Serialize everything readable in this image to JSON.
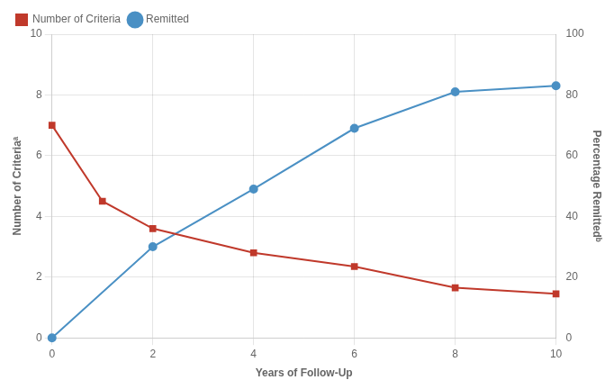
{
  "chart_data": {
    "type": "line",
    "xlabel": "Years of Follow-Up",
    "ylabel": "Number of Criteriaᵃ",
    "y2label": "Percentage Remittedᵇ",
    "xlim": [
      0,
      10
    ],
    "xticks": [
      0,
      2,
      4,
      6,
      8,
      10
    ],
    "ylim": [
      0,
      10
    ],
    "yticks": [
      0,
      2,
      4,
      6,
      8,
      10
    ],
    "y2lim": [
      0,
      100
    ],
    "y2ticks": [
      0,
      20,
      40,
      60,
      80,
      100
    ],
    "grid": true,
    "legend": "upper left",
    "series": [
      {
        "name": "Number of Criteria",
        "color": "#C0392B",
        "marker": "square",
        "line_style": "solid",
        "x": [
          0,
          1,
          2,
          4,
          6,
          8,
          10
        ],
        "values": [
          7.0,
          4.5,
          3.6,
          2.8,
          2.35,
          1.65,
          1.45
        ]
      },
      {
        "name": "Remitted",
        "color": "#4A90C4",
        "marker": "circle",
        "line_style": "solid",
        "axis": "y2",
        "x": [
          0,
          2,
          4,
          6,
          8,
          10
        ],
        "values": [
          0,
          30,
          49,
          69,
          81,
          83
        ]
      }
    ]
  }
}
